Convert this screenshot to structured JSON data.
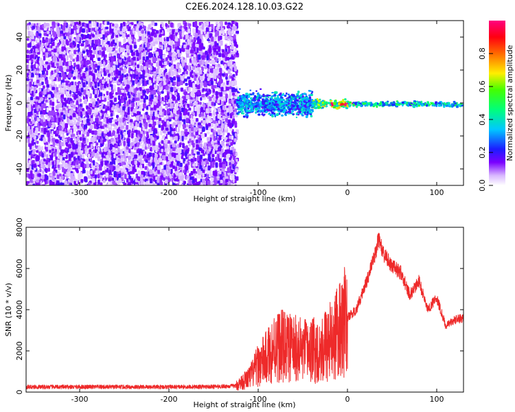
{
  "title": "C2E6.2024.128.10.03.G22",
  "colors": {
    "spectrogram_low": "#7a00ff",
    "spectrogram_mid": "#18e6d2",
    "spectrogram_high": "#ff0040",
    "snr_line": "#ee2a2a"
  },
  "chart_data": [
    {
      "type": "heatmap",
      "xlabel": "Height of straight line (km)",
      "ylabel": "Frequency (Hz)",
      "xlim": [
        -360,
        130
      ],
      "ylim": [
        -50,
        50
      ],
      "xticks": [
        -300,
        -200,
        -100,
        0,
        100
      ],
      "yticks": [
        -40,
        -20,
        0,
        20,
        40
      ],
      "colorbar": {
        "label": "Normalized spectral amplitude",
        "range": [
          0,
          1
        ],
        "ticks": [
          0.0,
          0.2,
          0.4,
          0.6,
          0.8
        ],
        "tick_labels": [
          "0.0",
          "0.2",
          "0.4",
          "0.6",
          "0.8"
        ],
        "colormap": "rainbow (white-purple-blue-cyan-green-yellow-red-magenta)"
      },
      "regions": [
        {
          "x_range": [
            -360,
            -125
          ],
          "freq_range": [
            -50,
            50
          ],
          "amplitude": 0.05,
          "description": "broadband noise"
        },
        {
          "x_range": [
            -125,
            -40
          ],
          "freq_range": [
            -10,
            10
          ],
          "amplitude": 0.35
        },
        {
          "x_range": [
            -40,
            0
          ],
          "freq_range": [
            -4,
            4
          ],
          "amplitude": 0.6
        },
        {
          "x_range": [
            -20,
            15
          ],
          "freq_range": [
            -1,
            1
          ],
          "amplitude": 0.9
        },
        {
          "x_range": [
            0,
            130
          ],
          "freq_range": [
            -2,
            2
          ],
          "amplitude": 0.45
        }
      ]
    },
    {
      "type": "line",
      "xlabel": "Height of straight line (km)",
      "ylabel": "SNR (10 * v/v)",
      "xlim": [
        -360,
        130
      ],
      "ylim": [
        0,
        8000
      ],
      "xticks": [
        -300,
        -200,
        -100,
        0,
        100
      ],
      "yticks": [
        0,
        2000,
        4000,
        6000,
        8000
      ],
      "series": [
        {
          "x": [
            -360,
            -300,
            -250,
            -200,
            -150,
            -125,
            -110,
            -100,
            -90,
            -80,
            -70,
            -60,
            -50,
            -40,
            -30,
            -20,
            -10,
            0,
            10,
            20,
            30,
            35,
            40,
            50,
            60,
            70,
            80,
            90,
            100,
            110,
            120,
            130
          ],
          "values": [
            250,
            250,
            250,
            250,
            260,
            300,
            700,
            1300,
            1700,
            2300,
            2200,
            2100,
            2000,
            2000,
            2100,
            2400,
            2900,
            3600,
            4000,
            5200,
            6500,
            7500,
            6700,
            6100,
            5800,
            4700,
            5400,
            4000,
            4600,
            3200,
            3500,
            3600
          ]
        }
      ]
    }
  ]
}
